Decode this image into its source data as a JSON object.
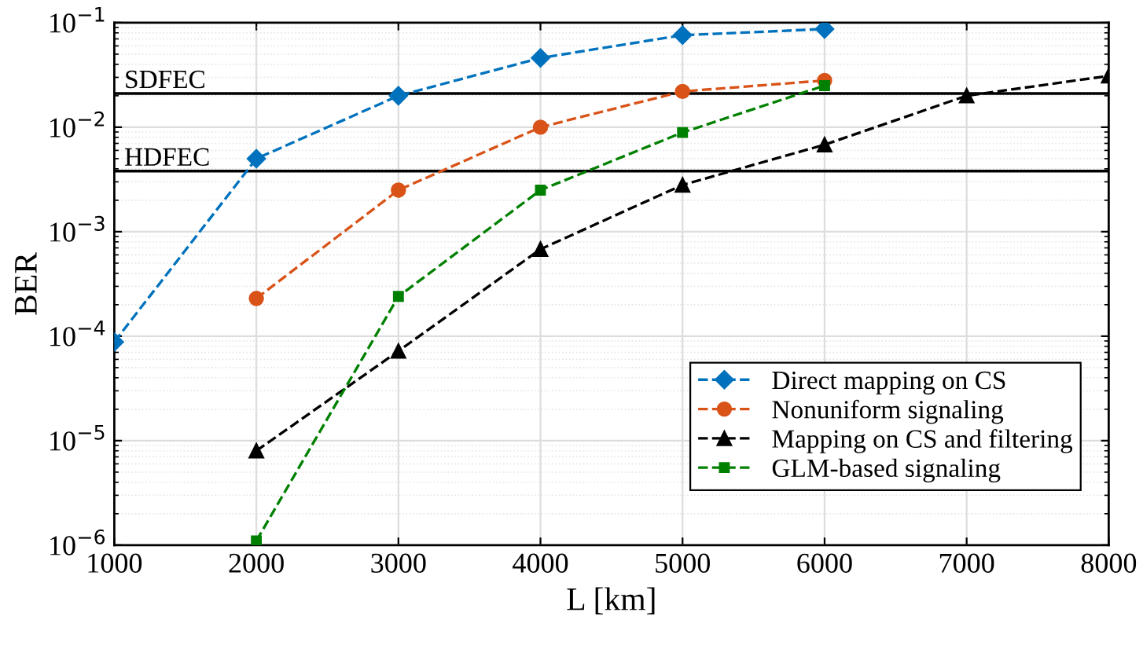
{
  "chart_data": {
    "type": "line",
    "xlabel": "L [km]",
    "ylabel": "BER",
    "log": "y",
    "xlim": [
      1000,
      8000
    ],
    "xticks": [
      1000,
      2000,
      3000,
      4000,
      5000,
      6000,
      7000,
      8000
    ],
    "ylim": [
      1e-06,
      0.1
    ],
    "yticks": [
      {
        "value": 1e-06,
        "label": "10$^{−6}$"
      },
      {
        "value": 1e-05,
        "label": "10$^{−5}$"
      },
      {
        "value": 0.0001,
        "label": "10$^{−4}$"
      },
      {
        "value": 0.001,
        "label": "10$^{−3}$"
      },
      {
        "value": 0.01,
        "label": "10$^{−2}$"
      },
      {
        "value": 0.1,
        "label": "10$^{−1}$"
      }
    ],
    "grid": true,
    "legend": "bottom right",
    "line_style": "dashed",
    "ref_lines": [
      {
        "axis": "y",
        "value": 0.021,
        "label": "SDFEC",
        "color": "#000000"
      },
      {
        "axis": "y",
        "value": 0.0038,
        "label": "HDFEC",
        "color": "#000000"
      }
    ],
    "series": [
      {
        "name": "Direct mapping on CS",
        "color": "#0072bd",
        "marker": "diamond",
        "x": [
          1000,
          2000,
          3000,
          4000,
          5000,
          6000
        ],
        "values": [
          8.8e-05,
          0.005,
          0.02,
          0.046,
          0.076,
          0.087
        ]
      },
      {
        "name": "Nonuniform signaling",
        "color": "#d95319",
        "marker": "circle",
        "x": [
          2000,
          3000,
          4000,
          5000,
          6000
        ],
        "values": [
          0.00023,
          0.0025,
          0.01,
          0.022,
          0.028
        ]
      },
      {
        "name": "Mapping on CS and filtering",
        "color": "#000000",
        "marker": "triangle",
        "x": [
          2000,
          3000,
          4000,
          5000,
          6000,
          7000,
          8000
        ],
        "values": [
          8e-06,
          7.2e-05,
          0.00068,
          0.0028,
          0.0068,
          0.02,
          0.031
        ]
      },
      {
        "name": "GLM-based signaling",
        "color": "#008000",
        "marker": "square",
        "x": [
          2000,
          3000,
          4000,
          5000,
          6000
        ],
        "values": [
          1.1e-06,
          0.00024,
          0.0025,
          0.0089,
          0.025
        ]
      }
    ]
  }
}
